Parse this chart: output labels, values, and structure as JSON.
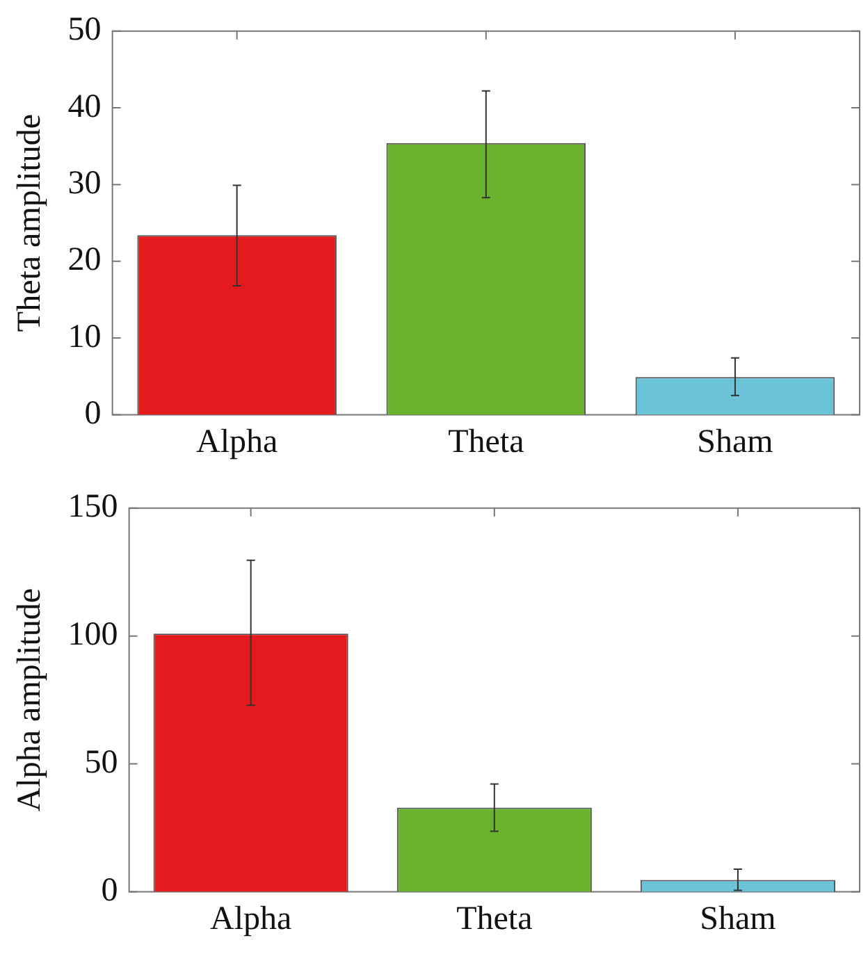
{
  "chart_data": [
    {
      "type": "bar",
      "ylabel": "Theta amplitude",
      "categories": [
        "Alpha",
        "Theta",
        "Sham"
      ],
      "values": [
        23.4,
        35.4,
        4.9
      ],
      "colors": [
        "#e41a1c",
        "#6ab42d",
        "#6bc3d8"
      ],
      "errors": [
        [
          16.8,
          29.9
        ],
        [
          28.3,
          42.2
        ],
        [
          2.5,
          7.4
        ]
      ],
      "ylim": [
        0,
        50
      ],
      "yticks": [
        0,
        10,
        20,
        30,
        40,
        50
      ],
      "grid": false,
      "legend": false
    },
    {
      "type": "bar",
      "ylabel": "Alpha amplitude",
      "categories": [
        "Alpha",
        "Theta",
        "Sham"
      ],
      "values": [
        100.9,
        32.9,
        4.6
      ],
      "colors": [
        "#e41a1c",
        "#6ab42d",
        "#6bc3d8"
      ],
      "errors": [
        [
          72.9,
          129.6
        ],
        [
          23.6,
          42.1
        ],
        [
          0.5,
          8.8
        ]
      ],
      "ylim": [
        0,
        150
      ],
      "yticks": [
        0,
        50,
        100,
        150
      ],
      "grid": false,
      "legend": false
    }
  ]
}
